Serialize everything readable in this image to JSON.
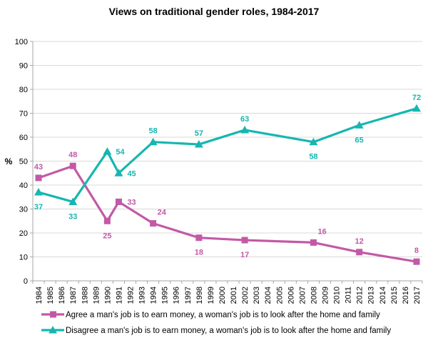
{
  "chart_data": {
    "type": "line",
    "title": "Views on traditional gender roles, 1984-2017",
    "xlabel": "",
    "ylabel": "%",
    "ylim": [
      0,
      100
    ],
    "yticks": [
      0,
      10,
      20,
      30,
      40,
      50,
      60,
      70,
      80,
      90,
      100
    ],
    "x": [
      "1984",
      "1985",
      "1986",
      "1987",
      "1988",
      "1989",
      "1990",
      "1991",
      "1992",
      "1993",
      "1994",
      "1995",
      "1996",
      "1997",
      "1998",
      "1999",
      "2000",
      "2001",
      "2002",
      "2003",
      "2004",
      "2005",
      "2006",
      "2007",
      "2008",
      "2009",
      "2010",
      "2011",
      "2012",
      "2013",
      "2014",
      "2015",
      "2016",
      "2017"
    ],
    "grid": true,
    "legend_position": "bottom",
    "series": [
      {
        "name": "Agree a man's job is to earn money, a woman's job is to look after the home and family",
        "color": "#c359a6",
        "marker": "square",
        "points": [
          {
            "x": "1984",
            "y": 43,
            "label": "43",
            "label_pos": "above"
          },
          {
            "x": "1987",
            "y": 48,
            "label": "48",
            "label_pos": "above"
          },
          {
            "x": "1990",
            "y": 25,
            "label": "25",
            "label_pos": "below"
          },
          {
            "x": "1991",
            "y": 33,
            "label": "33",
            "label_pos": "right"
          },
          {
            "x": "1994",
            "y": 24,
            "label": "24",
            "label_pos": "above-right"
          },
          {
            "x": "1998",
            "y": 18,
            "label": "18",
            "label_pos": "below"
          },
          {
            "x": "2002",
            "y": 17,
            "label": "17",
            "label_pos": "below"
          },
          {
            "x": "2008",
            "y": 16,
            "label": "16",
            "label_pos": "above-right"
          },
          {
            "x": "2012",
            "y": 12,
            "label": "12",
            "label_pos": "above"
          },
          {
            "x": "2017",
            "y": 8,
            "label": "8",
            "label_pos": "above"
          }
        ]
      },
      {
        "name": "Disagree a man's job is to earn money, a woman's job is to look after the home and family",
        "color": "#17b6b0",
        "marker": "triangle",
        "points": [
          {
            "x": "1984",
            "y": 37,
            "label": "37",
            "label_pos": "below"
          },
          {
            "x": "1987",
            "y": 33,
            "label": "33",
            "label_pos": "below"
          },
          {
            "x": "1990",
            "y": 54,
            "label": "54",
            "label_pos": "right"
          },
          {
            "x": "1991",
            "y": 45,
            "label": "45",
            "label_pos": "right"
          },
          {
            "x": "1994",
            "y": 58,
            "label": "58",
            "label_pos": "above"
          },
          {
            "x": "1998",
            "y": 57,
            "label": "57",
            "label_pos": "above"
          },
          {
            "x": "2002",
            "y": 63,
            "label": "63",
            "label_pos": "above"
          },
          {
            "x": "2008",
            "y": 58,
            "label": "58",
            "label_pos": "below"
          },
          {
            "x": "2012",
            "y": 65,
            "label": "65",
            "label_pos": "below"
          },
          {
            "x": "2017",
            "y": 72,
            "label": "72",
            "label_pos": "above"
          }
        ]
      }
    ]
  }
}
